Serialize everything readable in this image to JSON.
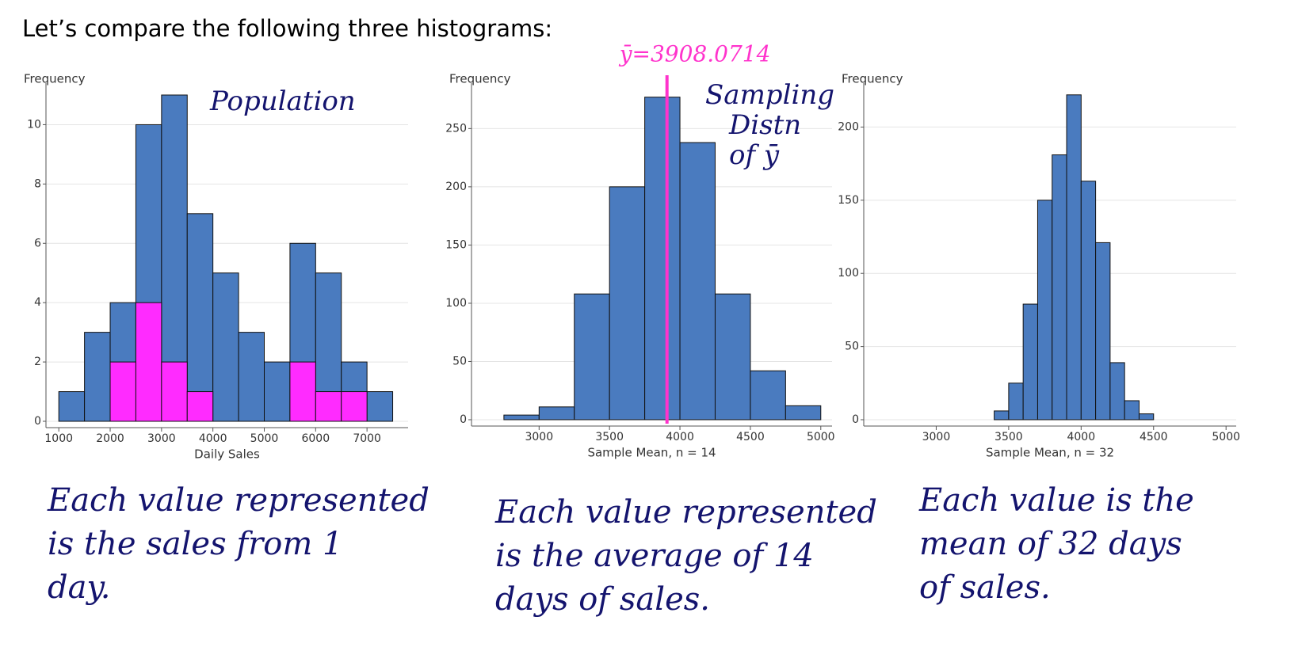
{
  "heading": "Let’s compare the following three histograms:",
  "chart_data": [
    {
      "type": "histogram",
      "ylabel": "Frequency",
      "xlabel": "Daily Sales",
      "annotation": [
        "Population"
      ],
      "bins": [
        1000,
        1500,
        2000,
        2500,
        3000,
        3500,
        4000,
        4500,
        5000,
        5500,
        6000,
        6500,
        7000,
        7500
      ],
      "values": [
        1,
        3,
        4,
        10,
        11,
        7,
        5,
        3,
        2,
        6,
        5,
        2,
        1
      ],
      "color": "#4a7bbf",
      "highlight_values": [
        0,
        0,
        2,
        4,
        2,
        1,
        0,
        0,
        0,
        2,
        1,
        1,
        0
      ],
      "highlight_color": "#ff2bff",
      "xlim": [
        750,
        7800
      ],
      "xticks": [
        1000,
        2000,
        3000,
        4000,
        5000,
        6000,
        7000
      ],
      "ylim": [
        0,
        11.4
      ],
      "yticks": [
        0,
        2,
        4,
        6,
        8,
        10
      ],
      "grid": true,
      "caption": [
        "Each value represented",
        "is the sales from 1",
        "day."
      ]
    },
    {
      "type": "histogram",
      "ylabel": "Frequency",
      "xlabel": "Sample Mean, n = 14",
      "annotation": [
        "Sampling",
        "Distn",
        "of ȳ"
      ],
      "bins": [
        2750,
        3000,
        3250,
        3500,
        3750,
        4000,
        4250,
        4500,
        4750,
        5000
      ],
      "values": [
        4,
        11,
        108,
        200,
        277,
        238,
        108,
        42,
        12
      ],
      "color": "#4a7bbf",
      "mean": 3908.0714,
      "mean_label": "ȳ=3908.0714",
      "mean_color": "#ff33cc",
      "xlim": [
        2520,
        5080
      ],
      "xticks": [
        3000,
        3500,
        4000,
        4500,
        5000
      ],
      "ylim": [
        0,
        289
      ],
      "yticks": [
        0,
        50,
        100,
        150,
        200,
        250
      ],
      "grid": true,
      "caption": [
        "Each value represented",
        "is the average of 14",
        "days of sales."
      ]
    },
    {
      "type": "histogram",
      "ylabel": "Frequency",
      "xlabel": "Sample Mean, n = 32",
      "bins": [
        3400,
        3500,
        3600,
        3700,
        3800,
        3900,
        4000,
        4100,
        4200,
        4300,
        4400,
        4500
      ],
      "values": [
        6,
        25,
        79,
        150,
        181,
        222,
        163,
        121,
        39,
        13,
        4
      ],
      "color": "#4a7bbf",
      "xlim": [
        2500,
        5070
      ],
      "xticks": [
        3000,
        3500,
        4000,
        4500,
        5000
      ],
      "ylim": [
        0,
        230
      ],
      "yticks": [
        0,
        50,
        100,
        150,
        200
      ],
      "grid": true,
      "caption": [
        "Each value is the",
        "mean of 32 days",
        "of sales."
      ]
    }
  ]
}
